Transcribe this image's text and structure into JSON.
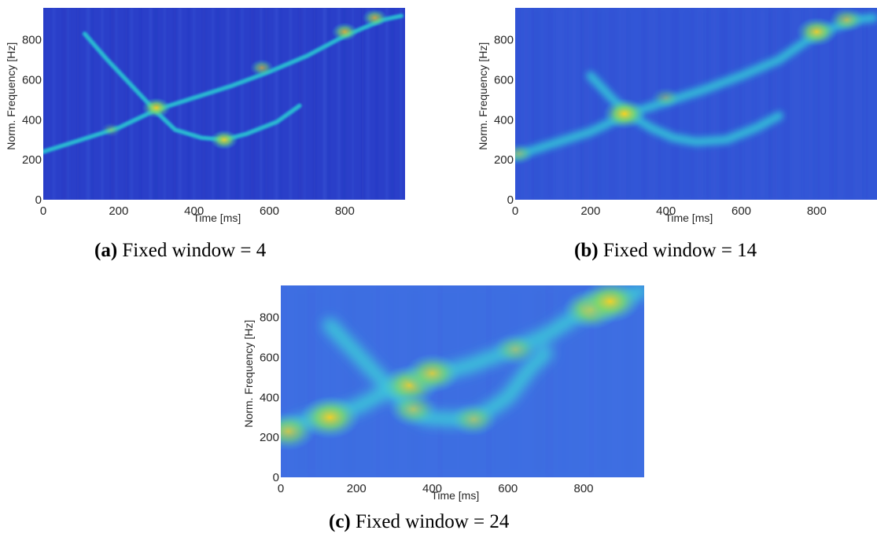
{
  "figure": {
    "panels": [
      {
        "caption_label": "(a)",
        "caption_text": "Fixed window = 4"
      },
      {
        "caption_label": "(b)",
        "caption_text": "Fixed window = 14"
      },
      {
        "caption_label": "(c)",
        "caption_text": "Fixed window = 24"
      }
    ]
  },
  "chart_data": [
    {
      "type": "heatmap",
      "title": "",
      "xlabel": "Time [ms]",
      "ylabel": "Norm. Frequency [Hz]",
      "xlim": [
        0,
        960
      ],
      "ylim": [
        0,
        960
      ],
      "xticks": [
        "0",
        "200",
        "400",
        "600",
        "800"
      ],
      "yticks": [
        "0",
        "200",
        "400",
        "600",
        "800"
      ],
      "colormap": "parula",
      "background_color": "#2a3fc9",
      "ridge_color": "#21b6d8",
      "peak_color": "#f5d327",
      "hot_color": "#ffd21a",
      "series": [
        {
          "x": [
            0,
            100,
            200,
            300,
            400,
            500,
            600,
            700,
            800,
            900,
            950
          ],
          "y": [
            240,
            300,
            360,
            450,
            510,
            570,
            640,
            720,
            820,
            900,
            920
          ]
        },
        {
          "x": [
            110,
            170,
            230,
            280,
            300,
            350,
            420,
            480,
            540,
            620,
            680
          ],
          "y": [
            830,
            700,
            580,
            480,
            440,
            350,
            310,
            300,
            330,
            390,
            470
          ]
        }
      ],
      "peaks": [
        {
          "x": 300,
          "y": 460,
          "v": 0.9
        },
        {
          "x": 480,
          "y": 300,
          "v": 0.85
        },
        {
          "x": 580,
          "y": 660,
          "v": 0.6
        },
        {
          "x": 800,
          "y": 840,
          "v": 0.75
        },
        {
          "x": 880,
          "y": 910,
          "v": 0.7
        },
        {
          "x": 180,
          "y": 350,
          "v": 0.35
        }
      ]
    },
    {
      "type": "heatmap",
      "title": "",
      "xlabel": "Time [ms]",
      "ylabel": "Norm. Frequency [Hz]",
      "xlim": [
        0,
        960
      ],
      "ylim": [
        0,
        960
      ],
      "xticks": [
        "0",
        "200",
        "400",
        "600",
        "800"
      ],
      "yticks": [
        "0",
        "200",
        "400",
        "600",
        "800"
      ],
      "colormap": "parula",
      "background_color": "#3355d6",
      "ridge_color": "#2fb4df",
      "peak_color": "#f0d22a",
      "hot_color": "#ffd21a",
      "series": [
        {
          "x": [
            0,
            100,
            200,
            300,
            400,
            500,
            600,
            700,
            800,
            900,
            950
          ],
          "y": [
            220,
            280,
            340,
            430,
            490,
            550,
            620,
            700,
            830,
            900,
            910
          ]
        },
        {
          "x": [
            200,
            260,
            300,
            360,
            420,
            480,
            560,
            640,
            700
          ],
          "y": [
            620,
            500,
            430,
            360,
            310,
            290,
            300,
            360,
            420
          ]
        }
      ],
      "peaks": [
        {
          "x": 290,
          "y": 430,
          "v": 0.95
        },
        {
          "x": 800,
          "y": 840,
          "v": 0.85
        },
        {
          "x": 880,
          "y": 900,
          "v": 0.6
        },
        {
          "x": 10,
          "y": 230,
          "v": 0.4
        },
        {
          "x": 400,
          "y": 510,
          "v": 0.35
        }
      ]
    },
    {
      "type": "heatmap",
      "title": "",
      "xlabel": "Time [ms]",
      "ylabel": "Norm. Frequency [Hz]",
      "xlim": [
        0,
        960
      ],
      "ylim": [
        0,
        960
      ],
      "xticks": [
        "0",
        "200",
        "400",
        "600",
        "800"
      ],
      "yticks": [
        "0",
        "200",
        "400",
        "600",
        "800"
      ],
      "colormap": "parula",
      "background_color": "#3f6ee2",
      "ridge_color": "#3fbfe2",
      "peak_color": "#f2d02a",
      "hot_color": "#ffd21a",
      "series": [
        {
          "x": [
            0,
            100,
            200,
            300,
            400,
            500,
            600,
            700,
            800,
            860,
            950
          ],
          "y": [
            240,
            300,
            350,
            450,
            510,
            560,
            630,
            710,
            830,
            870,
            930
          ]
        },
        {
          "x": [
            130,
            190,
            250,
            300,
            340,
            380,
            450,
            520,
            600,
            660,
            700
          ],
          "y": [
            760,
            640,
            520,
            430,
            340,
            300,
            290,
            300,
            400,
            550,
            620
          ]
        }
      ],
      "peaks": [
        {
          "x": 20,
          "y": 230,
          "v": 0.7
        },
        {
          "x": 130,
          "y": 300,
          "v": 0.9
        },
        {
          "x": 340,
          "y": 460,
          "v": 0.8
        },
        {
          "x": 400,
          "y": 520,
          "v": 0.75
        },
        {
          "x": 820,
          "y": 840,
          "v": 0.8
        },
        {
          "x": 870,
          "y": 880,
          "v": 0.9
        },
        {
          "x": 350,
          "y": 340,
          "v": 0.55
        },
        {
          "x": 510,
          "y": 290,
          "v": 0.5
        },
        {
          "x": 620,
          "y": 640,
          "v": 0.45
        }
      ]
    }
  ]
}
